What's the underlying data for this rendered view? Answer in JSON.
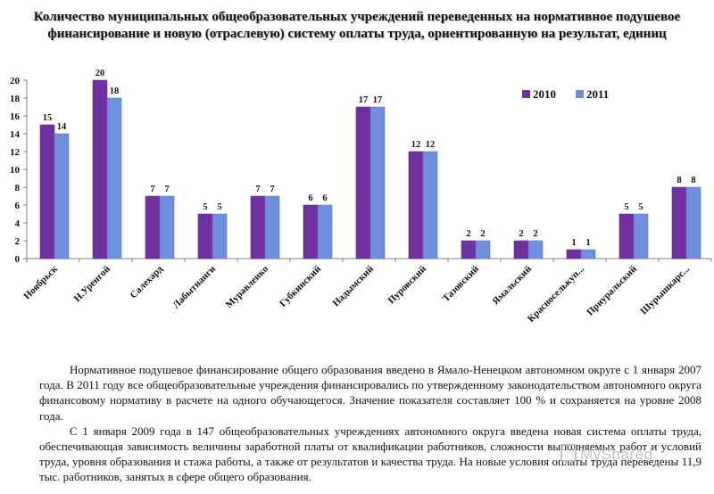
{
  "title": "Количество муниципальных общеобразовательных учреждений переведенных на нормативное подушевое финансирование и новую (отраслевую) систему оплаты труда, ориентированную на результат, единиц",
  "chart_data": {
    "type": "bar",
    "categories": [
      "Ноябрьск",
      "Н.Уренгой",
      "Салехард",
      "Лабытнанги",
      "Муравленко",
      "Губкинский",
      "Надымский",
      "Пуровский",
      "Тазовский",
      "Ямальский",
      "Красноселькуп...",
      "Приуральский",
      "Шурышкарс..."
    ],
    "series": [
      {
        "name": "2010",
        "values": [
          15,
          20,
          7,
          5,
          7,
          6,
          17,
          12,
          2,
          2,
          1,
          5,
          8
        ],
        "color": "#7030a0"
      },
      {
        "name": "2011",
        "values": [
          14,
          18,
          7,
          5,
          7,
          6,
          17,
          12,
          2,
          2,
          1,
          5,
          8
        ],
        "color": "#6f8fdc"
      }
    ],
    "yticks": [
      0,
      2,
      4,
      6,
      8,
      10,
      12,
      14,
      16,
      18,
      20
    ],
    "ylim": [
      0,
      20
    ],
    "legend_position": "top-right",
    "grid": false
  },
  "paragraphs": [
    "Нормативное подушевое финансирование общего образования введено в Ямало-Ненецком автономном округе с 1 января 2007 года. В 2011 году все общеобразовательные учреждения финансировались по утвержденному законодательством автономного округа финансовому нормативу в расчете на одного обучающегося. Значение показателя составляет 100 % и сохраняется на уровне 2008 года.",
    "С 1 января 2009 года в 147 общеобразовательных учреждениях автономного округа введена новая система оплаты труда, обеспечивающая зависимость величины заработной платы от квалификации работников, сложности выполняемых работ и условий труда, уровня образования и стажа работы, а также от результатов и качества труда. На новые условия оплаты труда переведены 11,9 тыс. работников, занятых в сфере общего образования."
  ],
  "watermark": "MyShared"
}
